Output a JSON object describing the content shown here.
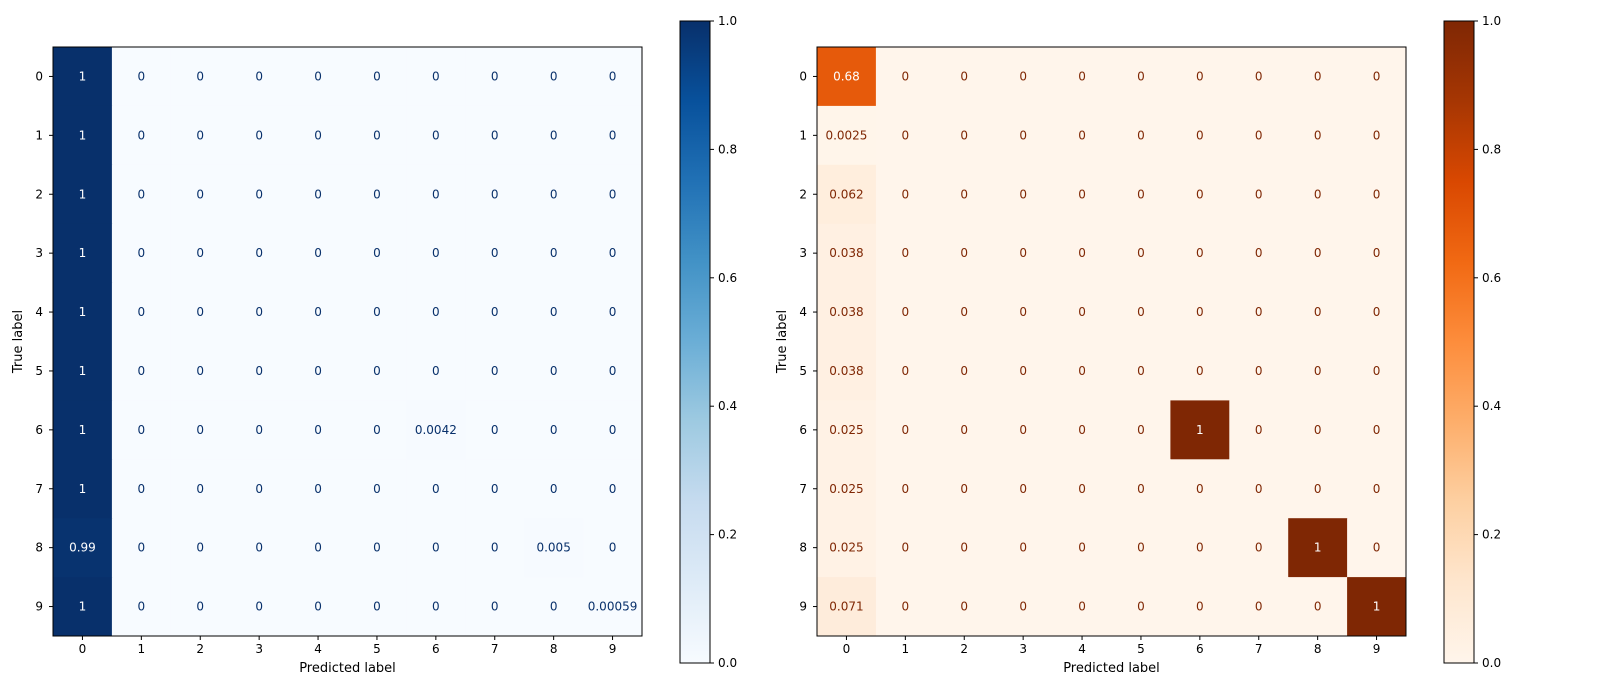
{
  "chart_data": [
    {
      "type": "heatmap",
      "colormap": "Blues",
      "title": "",
      "xlabel": "Predicted label",
      "ylabel": "True label",
      "x_ticks": [
        "0",
        "1",
        "2",
        "3",
        "4",
        "5",
        "6",
        "7",
        "8",
        "9"
      ],
      "y_ticks": [
        "0",
        "1",
        "2",
        "3",
        "4",
        "5",
        "6",
        "7",
        "8",
        "9"
      ],
      "matrix": [
        [
          1,
          0,
          0,
          0,
          0,
          0,
          0,
          0,
          0,
          0
        ],
        [
          1,
          0,
          0,
          0,
          0,
          0,
          0,
          0,
          0,
          0
        ],
        [
          1,
          0,
          0,
          0,
          0,
          0,
          0,
          0,
          0,
          0
        ],
        [
          1,
          0,
          0,
          0,
          0,
          0,
          0,
          0,
          0,
          0
        ],
        [
          1,
          0,
          0,
          0,
          0,
          0,
          0,
          0,
          0,
          0
        ],
        [
          1,
          0,
          0,
          0,
          0,
          0,
          0,
          0,
          0,
          0
        ],
        [
          1,
          0,
          0,
          0,
          0,
          0,
          0.0042,
          0,
          0,
          0
        ],
        [
          1,
          0,
          0,
          0,
          0,
          0,
          0,
          0,
          0,
          0
        ],
        [
          0.99,
          0,
          0,
          0,
          0,
          0,
          0,
          0,
          0.005,
          0
        ],
        [
          1,
          0,
          0,
          0,
          0,
          0,
          0,
          0,
          0,
          0.00059
        ]
      ],
      "labels": [
        [
          "1",
          "0",
          "0",
          "0",
          "0",
          "0",
          "0",
          "0",
          "0",
          "0"
        ],
        [
          "1",
          "0",
          "0",
          "0",
          "0",
          "0",
          "0",
          "0",
          "0",
          "0"
        ],
        [
          "1",
          "0",
          "0",
          "0",
          "0",
          "0",
          "0",
          "0",
          "0",
          "0"
        ],
        [
          "1",
          "0",
          "0",
          "0",
          "0",
          "0",
          "0",
          "0",
          "0",
          "0"
        ],
        [
          "1",
          "0",
          "0",
          "0",
          "0",
          "0",
          "0",
          "0",
          "0",
          "0"
        ],
        [
          "1",
          "0",
          "0",
          "0",
          "0",
          "0",
          "0",
          "0",
          "0",
          "0"
        ],
        [
          "1",
          "0",
          "0",
          "0",
          "0",
          "0",
          "0.0042",
          "0",
          "0",
          "0"
        ],
        [
          "1",
          "0",
          "0",
          "0",
          "0",
          "0",
          "0",
          "0",
          "0",
          "0"
        ],
        [
          "0.99",
          "0",
          "0",
          "0",
          "0",
          "0",
          "0",
          "0",
          "0.005",
          "0"
        ],
        [
          "1",
          "0",
          "0",
          "0",
          "0",
          "0",
          "0",
          "0",
          "0",
          "0.00059"
        ]
      ],
      "colorbar": {
        "range": [
          0,
          1
        ],
        "ticks": [
          "0.0",
          "0.2",
          "0.4",
          "0.6",
          "0.8",
          "1.0"
        ]
      }
    },
    {
      "type": "heatmap",
      "colormap": "Oranges",
      "title": "",
      "xlabel": "Predicted label",
      "ylabel": "True label",
      "x_ticks": [
        "0",
        "1",
        "2",
        "3",
        "4",
        "5",
        "6",
        "7",
        "8",
        "9"
      ],
      "y_ticks": [
        "0",
        "1",
        "2",
        "3",
        "4",
        "5",
        "6",
        "7",
        "8",
        "9"
      ],
      "matrix": [
        [
          0.68,
          0,
          0,
          0,
          0,
          0,
          0,
          0,
          0,
          0
        ],
        [
          0.0025,
          0,
          0,
          0,
          0,
          0,
          0,
          0,
          0,
          0
        ],
        [
          0.062,
          0,
          0,
          0,
          0,
          0,
          0,
          0,
          0,
          0
        ],
        [
          0.038,
          0,
          0,
          0,
          0,
          0,
          0,
          0,
          0,
          0
        ],
        [
          0.038,
          0,
          0,
          0,
          0,
          0,
          0,
          0,
          0,
          0
        ],
        [
          0.038,
          0,
          0,
          0,
          0,
          0,
          0,
          0,
          0,
          0
        ],
        [
          0.025,
          0,
          0,
          0,
          0,
          0,
          1,
          0,
          0,
          0
        ],
        [
          0.025,
          0,
          0,
          0,
          0,
          0,
          0,
          0,
          0,
          0
        ],
        [
          0.025,
          0,
          0,
          0,
          0,
          0,
          0,
          0,
          1,
          0
        ],
        [
          0.071,
          0,
          0,
          0,
          0,
          0,
          0,
          0,
          0,
          1
        ]
      ],
      "labels": [
        [
          "0.68",
          "0",
          "0",
          "0",
          "0",
          "0",
          "0",
          "0",
          "0",
          "0"
        ],
        [
          "0.0025",
          "0",
          "0",
          "0",
          "0",
          "0",
          "0",
          "0",
          "0",
          "0"
        ],
        [
          "0.062",
          "0",
          "0",
          "0",
          "0",
          "0",
          "0",
          "0",
          "0",
          "0"
        ],
        [
          "0.038",
          "0",
          "0",
          "0",
          "0",
          "0",
          "0",
          "0",
          "0",
          "0"
        ],
        [
          "0.038",
          "0",
          "0",
          "0",
          "0",
          "0",
          "0",
          "0",
          "0",
          "0"
        ],
        [
          "0.038",
          "0",
          "0",
          "0",
          "0",
          "0",
          "0",
          "0",
          "0",
          "0"
        ],
        [
          "0.025",
          "0",
          "0",
          "0",
          "0",
          "0",
          "1",
          "0",
          "0",
          "0"
        ],
        [
          "0.025",
          "0",
          "0",
          "0",
          "0",
          "0",
          "0",
          "0",
          "0",
          "0"
        ],
        [
          "0.025",
          "0",
          "0",
          "0",
          "0",
          "0",
          "0",
          "0",
          "1",
          "0"
        ],
        [
          "0.071",
          "0",
          "0",
          "0",
          "0",
          "0",
          "0",
          "0",
          "0",
          "1"
        ]
      ],
      "colorbar": {
        "range": [
          0,
          1
        ],
        "ticks": [
          "0.0",
          "0.2",
          "0.4",
          "0.6",
          "0.8",
          "1.0"
        ]
      }
    }
  ]
}
